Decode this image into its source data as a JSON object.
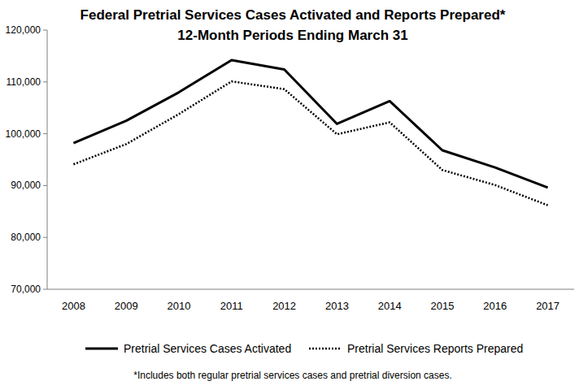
{
  "chart_data": {
    "type": "line",
    "title": "Federal Pretrial Services Cases Activated and Reports Prepared*",
    "subtitle": "12-Month Periods Ending March 31",
    "annotations": [
      "*Includes both regular pretrial services cases and pretrial diversion cases."
    ],
    "categories": [
      "2008",
      "2009",
      "2010",
      "2011",
      "2012",
      "2013",
      "2014",
      "2015",
      "2016",
      "2017"
    ],
    "series": [
      {
        "name": "Pretrial Services Cases Activated",
        "color": "#000000",
        "line_style": "solid",
        "values": [
          98200,
          102500,
          108000,
          114200,
          112400,
          101900,
          106300,
          96800,
          93500,
          89600
        ]
      },
      {
        "name": "Pretrial Services Reports Prepared",
        "color": "#000000",
        "line_style": "dotted",
        "values": [
          94100,
          98000,
          103800,
          110100,
          108600,
          99900,
          102200,
          93000,
          90100,
          86200
        ]
      }
    ],
    "ylim": [
      70000,
      120000
    ],
    "yticks": [
      {
        "value": 70000,
        "label": "70,000"
      },
      {
        "value": 80000,
        "label": "80,000"
      },
      {
        "value": 90000,
        "label": "90,000"
      },
      {
        "value": 100000,
        "label": "100,000"
      },
      {
        "value": 110000,
        "label": "110,000"
      },
      {
        "value": 120000,
        "label": "120,000"
      }
    ],
    "grid": false,
    "legend": "bottom"
  }
}
